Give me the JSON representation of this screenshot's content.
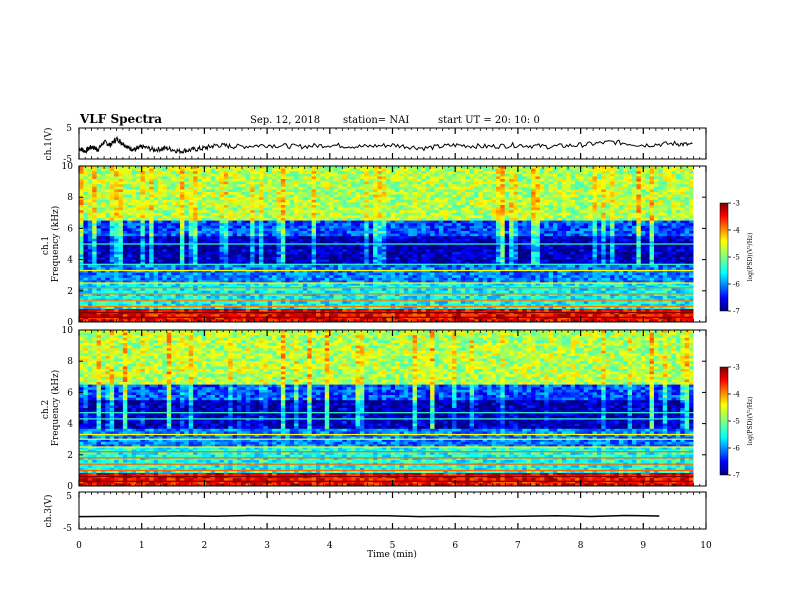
{
  "header": {
    "title": "VLF Spectra",
    "date": "Sep. 12, 2018",
    "station": "station= NAI",
    "start": "start  UT  =   20: 10: 0"
  },
  "chart_data": [
    {
      "type": "line",
      "id": "ch1-waveform",
      "ylabel": "ch.1(V)",
      "ylim": [
        -5,
        5
      ],
      "yticks": [
        "5",
        "-5"
      ],
      "xlim": [
        0,
        10
      ],
      "x": [
        0.0,
        0.1,
        0.2,
        0.3,
        0.4,
        0.5,
        0.6,
        0.7,
        0.8,
        0.9,
        1.0,
        1.2,
        1.4,
        1.6,
        1.8,
        2.0,
        2.2,
        2.5,
        3.0,
        3.5,
        4.0,
        4.5,
        5.0,
        5.5,
        6.0,
        6.5,
        7.0,
        7.5,
        8.0,
        8.5,
        9.0,
        9.5,
        9.8
      ],
      "y": [
        -1.5,
        -2.5,
        -1.0,
        -2.0,
        0.5,
        -0.5,
        1.5,
        0.0,
        -1.5,
        -2.0,
        -1.0,
        -2.0,
        -1.5,
        -2.5,
        -2.0,
        -1.5,
        -0.5,
        -1.0,
        -0.5,
        -1.0,
        -0.5,
        -1.0,
        -0.5,
        -1.5,
        -0.5,
        -1.0,
        -0.5,
        -1.0,
        -0.5,
        0.5,
        -0.5,
        0.0,
        -0.5
      ]
    },
    {
      "type": "heatmap",
      "id": "ch1-spectrogram",
      "ylabel": "ch.1\nFrequency (kHz)",
      "xlim": [
        0,
        10
      ],
      "ylim": [
        0,
        10
      ],
      "yticks": [
        "0",
        "2",
        "4",
        "6",
        "8",
        "10"
      ],
      "colorbar": {
        "min": -7,
        "max": -3,
        "ticks": [
          "-3",
          "-4",
          "-5",
          "-6",
          "-7"
        ],
        "label": "log(PSD)(V²/Hz)"
      },
      "description_levels": [
        {
          "freq_range_khz": [
            0,
            0.8
          ],
          "log_psd": -3.5
        },
        {
          "freq_range_khz": [
            0.8,
            2.5
          ],
          "log_psd": -5.5
        },
        {
          "freq_range_khz": [
            2.5,
            3.6
          ],
          "log_psd": -6.0
        },
        {
          "freq_range_khz": [
            3.6,
            5.5
          ],
          "log_psd": -6.8
        },
        {
          "freq_range_khz": [
            5.5,
            6.5
          ],
          "log_psd": -6.2
        },
        {
          "freq_range_khz": [
            6.5,
            10
          ],
          "log_psd": -4.8
        }
      ],
      "line_freqs_khz": [
        0.3,
        0.6,
        1.0,
        1.4,
        1.8,
        2.2,
        2.5,
        3.3,
        3.7,
        5.0
      ]
    },
    {
      "type": "heatmap",
      "id": "ch2-spectrogram",
      "ylabel": "ch.2\nFrequency (kHz)",
      "xlim": [
        0,
        10
      ],
      "ylim": [
        0,
        10
      ],
      "yticks": [
        "0",
        "2",
        "4",
        "6",
        "8",
        "10"
      ],
      "colorbar": {
        "min": -7,
        "max": -3,
        "ticks": [
          "-3",
          "-4",
          "-5",
          "-6",
          "-7"
        ],
        "label": "log(PSD)(V²/Hz)"
      },
      "description_levels": [
        {
          "freq_range_khz": [
            0,
            0.8
          ],
          "log_psd": -3.5
        },
        {
          "freq_range_khz": [
            0.8,
            2.5
          ],
          "log_psd": -5.4
        },
        {
          "freq_range_khz": [
            2.5,
            3.6
          ],
          "log_psd": -6.0
        },
        {
          "freq_range_khz": [
            3.6,
            5.5
          ],
          "log_psd": -6.8
        },
        {
          "freq_range_khz": [
            5.5,
            6.5
          ],
          "log_psd": -6.2
        },
        {
          "freq_range_khz": [
            6.5,
            10
          ],
          "log_psd": -4.8
        }
      ],
      "line_freqs_khz": [
        0.3,
        0.6,
        1.0,
        1.4,
        1.8,
        2.2,
        2.5,
        3.0,
        3.3,
        4.3,
        4.7
      ]
    },
    {
      "type": "line",
      "id": "ch3-waveform",
      "ylabel": "ch.3(V)",
      "ylim": [
        -5,
        5
      ],
      "yticks": [
        "5",
        "-5"
      ],
      "xlim": [
        0,
        10
      ],
      "x": [
        0.0,
        9.8
      ],
      "y": [
        -1.5,
        -1.5
      ]
    }
  ],
  "xaxis": {
    "label": "Time  (min)",
    "ticks": [
      "0",
      "1",
      "2",
      "3",
      "4",
      "5",
      "6",
      "7",
      "8",
      "9",
      "10"
    ],
    "ticks_top_text": []
  },
  "colors": {
    "jet": [
      "#000080",
      "#0000ff",
      "#0080ff",
      "#00ffff",
      "#80ff80",
      "#ffff00",
      "#ff8000",
      "#ff0000",
      "#800000"
    ],
    "background": "#ffffff",
    "ink": "#000000"
  }
}
